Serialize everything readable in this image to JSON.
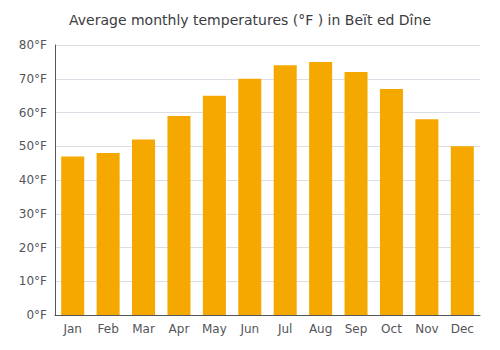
{
  "chart_data": {
    "type": "bar",
    "title": "Average monthly temperatures (°F ) in Beït ed Dîne",
    "categories": [
      "Jan",
      "Feb",
      "Mar",
      "Apr",
      "May",
      "Jun",
      "Jul",
      "Aug",
      "Sep",
      "Oct",
      "Nov",
      "Dec"
    ],
    "values": [
      47,
      48,
      52,
      59,
      65,
      70,
      74,
      75,
      72,
      67,
      58,
      50
    ],
    "color": "#F5A800",
    "ylim": [
      0,
      80
    ],
    "yticks": [
      {
        "value": 0,
        "label": "0°F"
      },
      {
        "value": 10,
        "label": "10°F"
      },
      {
        "value": 20,
        "label": "20°F"
      },
      {
        "value": 30,
        "label": "30°F"
      },
      {
        "value": 40,
        "label": "40°F"
      },
      {
        "value": 50,
        "label": "50°F"
      },
      {
        "value": 60,
        "label": "60°F"
      },
      {
        "value": 70,
        "label": "70°F"
      },
      {
        "value": 80,
        "label": "80°F"
      }
    ],
    "grid": true
  }
}
